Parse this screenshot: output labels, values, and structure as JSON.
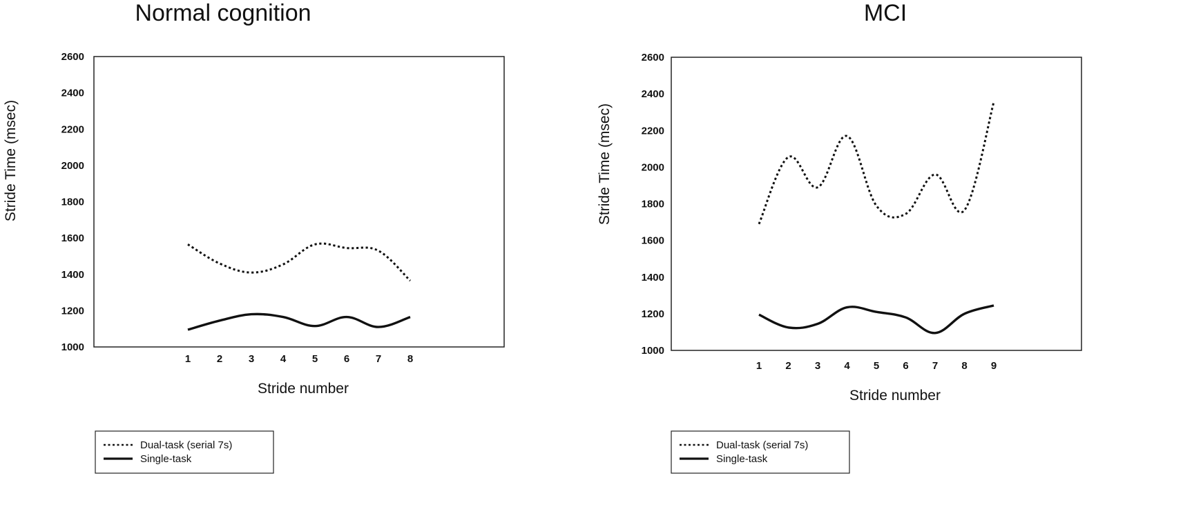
{
  "legend": {
    "dual_label": "Dual-task (serial 7s)",
    "single_label": "Single-task"
  },
  "chart_data": [
    {
      "type": "line",
      "title": "Normal cognition",
      "xlabel": "Stride number",
      "ylabel": "Stride Time (msec)",
      "ylim": [
        1000,
        2600
      ],
      "yticks": [
        1000,
        1200,
        1400,
        1600,
        1800,
        2000,
        2200,
        2400,
        2600
      ],
      "x": [
        1,
        2,
        3,
        4,
        5,
        6,
        7,
        8
      ],
      "legend_position": "bottom-left",
      "grid": false,
      "series": [
        {
          "name": "Dual-task (serial 7s)",
          "style": "dotted",
          "values": [
            1565,
            1460,
            1410,
            1455,
            1565,
            1545,
            1530,
            1365
          ]
        },
        {
          "name": "Single-task",
          "style": "solid",
          "values": [
            1095,
            1145,
            1180,
            1165,
            1115,
            1165,
            1110,
            1165
          ]
        }
      ]
    },
    {
      "type": "line",
      "title": "MCI",
      "xlabel": "Stride number",
      "ylabel": "Stride Time (msec)",
      "ylim": [
        1000,
        2600
      ],
      "yticks": [
        1000,
        1200,
        1400,
        1600,
        1800,
        2000,
        2200,
        2400,
        2600
      ],
      "x": [
        1,
        2,
        3,
        4,
        5,
        6,
        7,
        8,
        9
      ],
      "legend_position": "bottom-left",
      "grid": false,
      "series": [
        {
          "name": "Dual-task (serial 7s)",
          "style": "dotted",
          "values": [
            1690,
            2055,
            1890,
            2170,
            1790,
            1745,
            1960,
            1765,
            2355
          ]
        },
        {
          "name": "Single-task",
          "style": "solid",
          "values": [
            1195,
            1125,
            1145,
            1235,
            1210,
            1180,
            1095,
            1200,
            1245
          ]
        }
      ]
    }
  ]
}
